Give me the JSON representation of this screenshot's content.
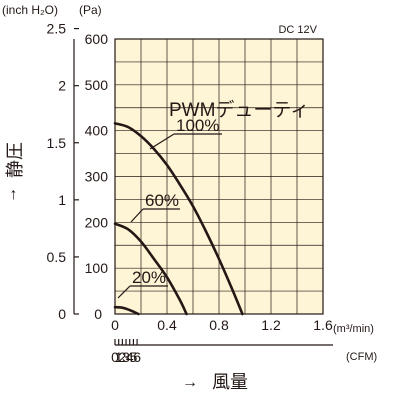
{
  "chart_data": {
    "type": "line",
    "condition_label": "DC 12V",
    "legend_title": "PWMデューティ",
    "y_axis_label": "静圧",
    "x_axis_label": "風量",
    "arrow_glyph": "→",
    "y_unit_inch": "(inch H₂O)",
    "y_unit_pa": "(Pa)",
    "x_unit_m3": "(m³/min)",
    "x_unit_cfm": "(CFM)",
    "y_ticks_pa": [
      "0",
      "100",
      "200",
      "300",
      "400",
      "500",
      "600"
    ],
    "y_ticks_inch": [
      "0",
      "0.5",
      "1",
      "1.5",
      "2",
      "2.5"
    ],
    "x_ticks_m3": [
      "0.4",
      "0.8",
      "1.2",
      "1.6"
    ],
    "x_ticks_cfm": [
      "0",
      "1",
      "2",
      "3",
      "4",
      "5",
      "6"
    ],
    "x_m3_zero_label": "0",
    "xlim_m3": [
      0,
      1.6
    ],
    "ylim_pa": [
      0,
      600
    ],
    "grid": true,
    "plot_background": "#fdf5d6",
    "line_color": "#231815",
    "series": [
      {
        "name": "100%",
        "x": [
          0,
          0.1,
          0.2,
          0.3,
          0.4,
          0.5,
          0.6,
          0.7,
          0.8,
          0.9,
          0.98
        ],
        "y": [
          416,
          408,
          388,
          360,
          325,
          282,
          235,
          180,
          120,
          55,
          0
        ]
      },
      {
        "name": "60%",
        "x": [
          0,
          0.1,
          0.2,
          0.3,
          0.4,
          0.5,
          0.55
        ],
        "y": [
          197,
          185,
          158,
          120,
          80,
          30,
          0
        ]
      },
      {
        "name": "20%",
        "x": [
          0,
          0.05,
          0.1,
          0.15,
          0.18
        ],
        "y": [
          15,
          14,
          10,
          4,
          0
        ]
      }
    ]
  }
}
